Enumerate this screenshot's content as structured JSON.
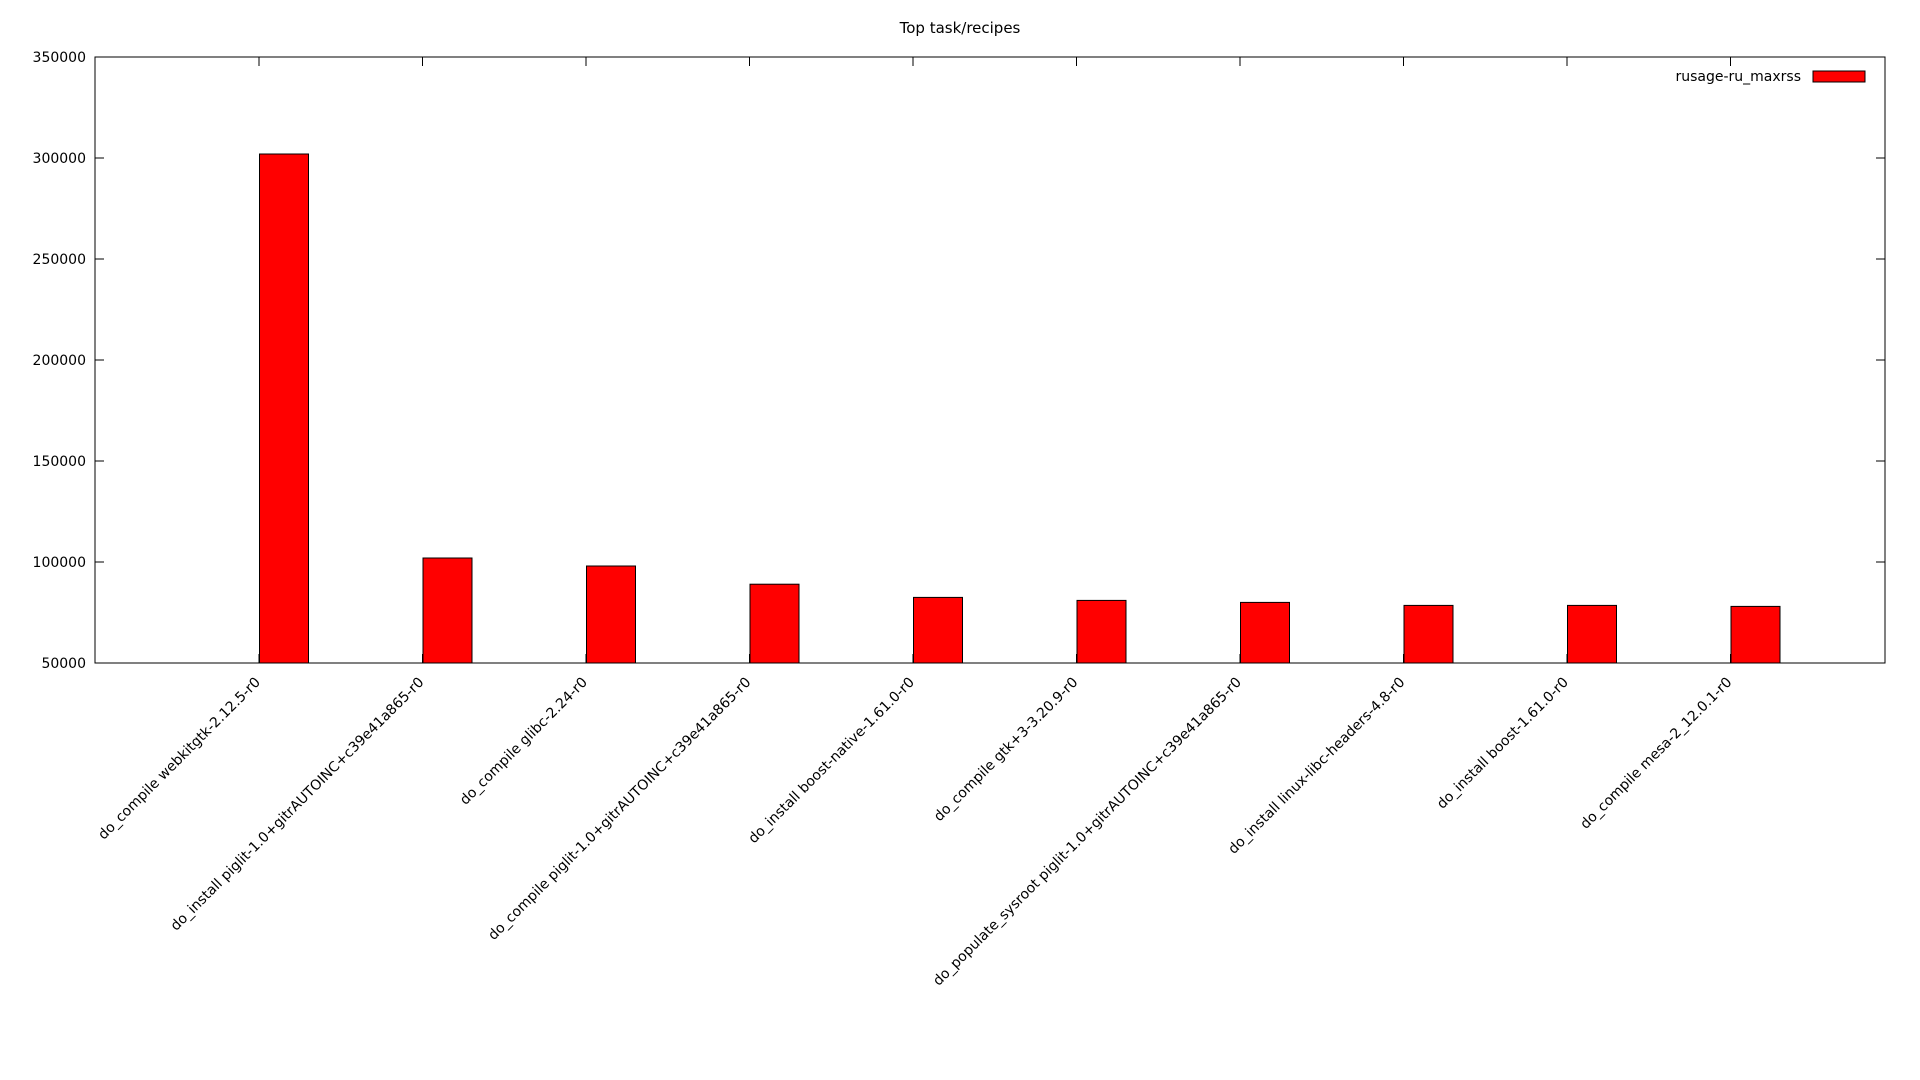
{
  "page": {
    "background_color": "#ffffff",
    "foreground_color": "#000000"
  },
  "chart_data": {
    "type": "bar",
    "title": "Top task/recipes",
    "xlabel": "",
    "ylabel": "",
    "legend": {
      "label": "rusage-ru_maxrss",
      "position": "top-right-inside"
    },
    "bar_color": "#ff0000",
    "bar_border_color": "#000000",
    "grid": false,
    "ylim": [
      50000,
      350000
    ],
    "ytick_step": 50000,
    "ytick_labels": [
      "50000",
      "100000",
      "150000",
      "200000",
      "250000",
      "300000",
      "350000"
    ],
    "categories": [
      "do_compile webkitgtk-2.12.5-r0",
      "do_install piglit-1.0+gitrAUTOINC+c39e41a865-r0",
      "do_compile glibc-2.24-r0",
      "do_compile piglit-1.0+gitrAUTOINC+c39e41a865-r0",
      "do_install boost-native-1.61.0-r0",
      "do_compile gtk+3-3.20.9-r0",
      "do_populate_sysroot piglit-1.0+gitrAUTOINC+c39e41a865-r0",
      "do_install linux-libc-headers-4.8-r0",
      "do_install boost-1.61.0-r0",
      "do_compile mesa-2_12.0.1-r0"
    ],
    "series": [
      {
        "name": "rusage-ru_maxrss",
        "values": [
          302000,
          102000,
          98000,
          89000,
          82500,
          81000,
          80000,
          78500,
          78500,
          78000
        ]
      }
    ]
  }
}
